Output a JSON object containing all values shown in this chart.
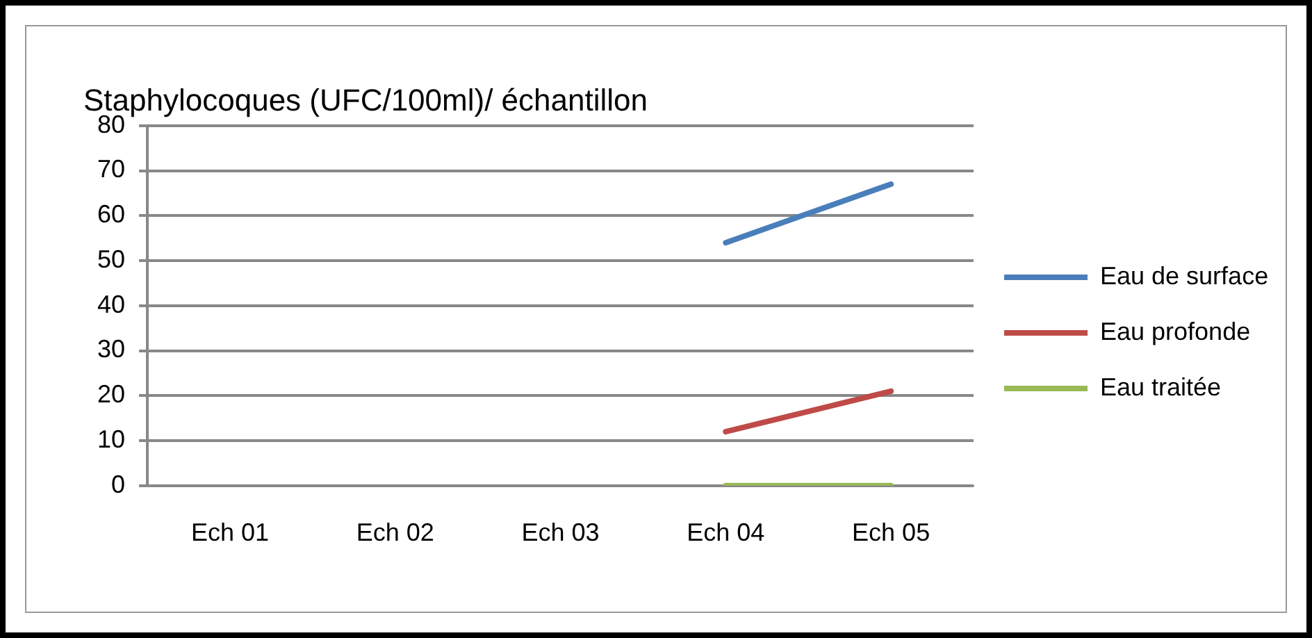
{
  "chart_data": {
    "type": "line",
    "title": "Staphylocoques (UFC/100ml)/ échantillon",
    "categories": [
      "Ech 01",
      "Ech 02",
      "Ech 03",
      "Ech 04",
      "Ech 05"
    ],
    "series": [
      {
        "name": "Eau de surface",
        "color": "#4a7ebb",
        "values": [
          null,
          null,
          null,
          54,
          67
        ]
      },
      {
        "name": "Eau profonde",
        "color": "#be4b48",
        "values": [
          null,
          null,
          null,
          12,
          21
        ]
      },
      {
        "name": "Eau traitée",
        "color": "#98b954",
        "values": [
          null,
          null,
          null,
          0,
          0
        ]
      }
    ],
    "ylim": [
      0,
      80
    ],
    "yticks": [
      0,
      10,
      20,
      30,
      40,
      50,
      60,
      70,
      80
    ],
    "grid": "y",
    "legend": "right",
    "marker": "none",
    "line_style": "solid"
  }
}
